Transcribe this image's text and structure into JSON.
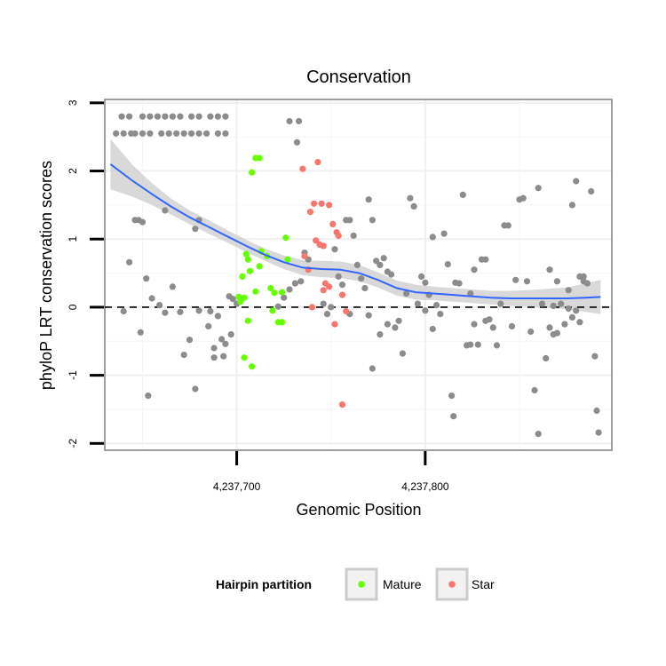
{
  "chart_data": {
    "type": "scatter",
    "title": "Conservation",
    "xlabel": "Genomic Position",
    "ylabel": "phyloP LRT conservation scores",
    "xlim": [
      4237630,
      4237899
    ],
    "ylim": [
      -2.1,
      3.05
    ],
    "x_ticks": [
      4237700,
      4237800
    ],
    "x_tick_labels": [
      "4,237,700",
      "4,237,800"
    ],
    "y_ticks": [
      -2,
      -1,
      0,
      1,
      2,
      3
    ],
    "y_tick_labels": [
      "-2",
      "-1",
      "0",
      "1",
      "2",
      "3"
    ],
    "grid": true,
    "reference_line": {
      "y": 0,
      "style": "dashed"
    },
    "legend": {
      "title": "Hairpin partition",
      "position": "bottom",
      "entries": [
        {
          "label": "Mature",
          "color": "#66ff00"
        },
        {
          "label": "Star",
          "color": "#f8766d"
        }
      ]
    },
    "colors": {
      "other": "#8c8c8c",
      "Mature": "#66ff00",
      "Star": "#f8766d",
      "smooth": "#3366ff",
      "band": "#cccccc"
    },
    "series": [
      {
        "partition": "other",
        "points": [
          [
            4237636,
            2.55
          ],
          [
            4237640,
            2.55
          ],
          [
            4237644,
            2.55
          ],
          [
            4237646,
            2.55
          ],
          [
            4237650,
            2.55
          ],
          [
            4237654,
            2.55
          ],
          [
            4237660,
            2.55
          ],
          [
            4237664,
            2.55
          ],
          [
            4237668,
            2.55
          ],
          [
            4237672,
            2.55
          ],
          [
            4237676,
            2.55
          ],
          [
            4237680,
            2.55
          ],
          [
            4237684,
            2.55
          ],
          [
            4237690,
            2.55
          ],
          [
            4237694,
            2.55
          ],
          [
            4237639,
            2.8
          ],
          [
            4237643,
            2.8
          ],
          [
            4237650,
            2.8
          ],
          [
            4237654,
            2.8
          ],
          [
            4237658,
            2.8
          ],
          [
            4237662,
            2.8
          ],
          [
            4237666,
            2.8
          ],
          [
            4237670,
            2.8
          ],
          [
            4237676,
            2.8
          ],
          [
            4237680,
            2.8
          ],
          [
            4237686,
            2.8
          ],
          [
            4237690,
            2.8
          ],
          [
            4237694,
            2.8
          ],
          [
            4237728,
            2.73
          ],
          [
            4237733,
            2.73
          ],
          [
            4237732,
            2.42
          ],
          [
            4237646,
            1.28
          ],
          [
            4237648,
            1.28
          ],
          [
            4237650,
            1.25
          ],
          [
            4237643,
            0.66
          ],
          [
            4237652,
            0.42
          ],
          [
            4237655,
            0.13
          ],
          [
            4237659,
            0.03
          ],
          [
            4237662,
            1.42
          ],
          [
            4237666,
            0.3
          ],
          [
            4237670,
            -0.07
          ],
          [
            4237672,
            -0.7
          ],
          [
            4237675,
            -0.48
          ],
          [
            4237678,
            1.15
          ],
          [
            4237680,
            1.28
          ],
          [
            4237685,
            -0.28
          ],
          [
            4237686,
            -0.06
          ],
          [
            4237688,
            -0.6
          ],
          [
            4237690,
            -0.13
          ],
          [
            4237692,
            -0.47
          ],
          [
            4237694,
            -0.54
          ],
          [
            4237696,
            0.16
          ],
          [
            4237698,
            0.12
          ],
          [
            4237700,
            0.05
          ],
          [
            4237693,
            -0.72
          ],
          [
            4237649,
            -0.37
          ],
          [
            4237653,
            -1.3
          ],
          [
            4237678,
            -1.2
          ],
          [
            4237662,
            -0.08
          ],
          [
            4237640,
            -0.06
          ],
          [
            4237680,
            -0.05
          ],
          [
            4237688,
            -0.74
          ],
          [
            4237697,
            -0.4
          ],
          [
            4237722,
            0.01
          ],
          [
            4237725,
            0.14
          ],
          [
            4237728,
            0.26
          ],
          [
            4237731,
            0.35
          ],
          [
            4237734,
            0.38
          ],
          [
            4237736,
            0.8
          ],
          [
            4237738,
            0.7
          ],
          [
            4237752,
            0.85
          ],
          [
            4237754,
            0.45
          ],
          [
            4237756,
            0.33
          ],
          [
            4237758,
            1.28
          ],
          [
            4237760,
            1.28
          ],
          [
            4237762,
            1.05
          ],
          [
            4237764,
            0.62
          ],
          [
            4237766,
            0.42
          ],
          [
            4237768,
            0.28
          ],
          [
            4237770,
            1.58
          ],
          [
            4237772,
            1.28
          ],
          [
            4237774,
            0.68
          ],
          [
            4237776,
            0.62
          ],
          [
            4237778,
            0.72
          ],
          [
            4237780,
            0.52
          ],
          [
            4237782,
            0.48
          ],
          [
            4237784,
            -0.3
          ],
          [
            4237786,
            -0.2
          ],
          [
            4237788,
            -0.68
          ],
          [
            4237790,
            0.2
          ],
          [
            4237792,
            1.6
          ],
          [
            4237794,
            1.48
          ],
          [
            4237796,
            0.05
          ],
          [
            4237798,
            0.45
          ],
          [
            4237800,
            0.36
          ],
          [
            4237802,
            0.18
          ],
          [
            4237804,
            1.03
          ],
          [
            4237806,
            0.03
          ],
          [
            4237808,
            -0.1
          ],
          [
            4237810,
            1.08
          ],
          [
            4237812,
            0.63
          ],
          [
            4237814,
            -1.3
          ],
          [
            4237815,
            -1.6
          ],
          [
            4237816,
            0.36
          ],
          [
            4237818,
            0.35
          ],
          [
            4237820,
            1.65
          ],
          [
            4237822,
            -0.56
          ],
          [
            4237824,
            0.2
          ],
          [
            4237826,
            0.55
          ],
          [
            4237828,
            -0.55
          ],
          [
            4237830,
            0.7
          ],
          [
            4237832,
            0.7
          ],
          [
            4237834,
            -0.18
          ],
          [
            4237836,
            -0.3
          ],
          [
            4237838,
            -0.56
          ],
          [
            4237840,
            0.05
          ],
          [
            4237842,
            1.2
          ],
          [
            4237844,
            1.2
          ],
          [
            4237846,
            -0.28
          ],
          [
            4237848,
            0.4
          ],
          [
            4237850,
            1.58
          ],
          [
            4237852,
            1.6
          ],
          [
            4237854,
            0.38
          ],
          [
            4237856,
            -0.36
          ],
          [
            4237858,
            -1.22
          ],
          [
            4237860,
            1.75
          ],
          [
            4237862,
            0.05
          ],
          [
            4237864,
            -0.75
          ],
          [
            4237866,
            0.55
          ],
          [
            4237868,
            0.02
          ],
          [
            4237870,
            0.38
          ],
          [
            4237872,
            0.05
          ],
          [
            4237874,
            -0.25
          ],
          [
            4237876,
            0.25
          ],
          [
            4237878,
            1.5
          ],
          [
            4237880,
            1.85
          ],
          [
            4237882,
            0.45
          ],
          [
            4237884,
            0.45
          ],
          [
            4237886,
            0.35
          ],
          [
            4237888,
            1.7
          ],
          [
            4237890,
            -0.72
          ],
          [
            4237891,
            -1.52
          ],
          [
            4237892,
            -1.84
          ],
          [
            4237860,
            -1.86
          ],
          [
            4237866,
            -0.3
          ],
          [
            4237868,
            -0.4
          ],
          [
            4237746,
            0.05
          ],
          [
            4237748,
            -0.1
          ],
          [
            4237750,
            0.0
          ],
          [
            4237760,
            -0.1
          ],
          [
            4237770,
            -0.12
          ],
          [
            4237776,
            -0.4
          ],
          [
            4237772,
            -0.9
          ],
          [
            4237780,
            -0.25
          ],
          [
            4237800,
            -0.05
          ],
          [
            4237804,
            -0.32
          ],
          [
            4237832,
            -0.2
          ],
          [
            4237826,
            -0.25
          ],
          [
            4237824,
            -0.55
          ],
          [
            4237880,
            -0.05
          ],
          [
            4237882,
            -0.22
          ],
          [
            4237884,
            0.38
          ],
          [
            4237878,
            -0.15
          ],
          [
            4237876,
            -0.02
          ],
          [
            4237870,
            -0.38
          ]
        ]
      },
      {
        "partition": "Mature",
        "points": [
          [
            4237702,
            0.08
          ],
          [
            4237703,
            0.45
          ],
          [
            4237705,
            0.78
          ],
          [
            4237706,
            0.7
          ],
          [
            4237707,
            0.53
          ],
          [
            4237708,
            1.98
          ],
          [
            4237710,
            2.19
          ],
          [
            4237712,
            2.19
          ],
          [
            4237710,
            0.23
          ],
          [
            4237713,
            0.82
          ],
          [
            4237716,
            0.75
          ],
          [
            4237718,
            0.28
          ],
          [
            4237720,
            0.21
          ],
          [
            4237722,
            -0.22
          ],
          [
            4237724,
            0.22
          ],
          [
            4237726,
            1.02
          ],
          [
            4237727,
            0.7
          ],
          [
            4237704,
            -0.74
          ],
          [
            4237708,
            -0.87
          ],
          [
            4237704,
            0.14
          ],
          [
            4237712,
            0.6
          ],
          [
            4237719,
            -0.05
          ],
          [
            4237724,
            -0.22
          ],
          [
            4237706,
            -0.2
          ],
          [
            4237701,
            0.15
          ]
        ]
      },
      {
        "partition": "Star",
        "points": [
          [
            4237735,
            2.03
          ],
          [
            4237743,
            2.13
          ],
          [
            4237739,
            1.4
          ],
          [
            4237741,
            1.52
          ],
          [
            4237745,
            1.52
          ],
          [
            4237749,
            1.5
          ],
          [
            4237751,
            1.22
          ],
          [
            4237753,
            1.1
          ],
          [
            4237754,
            1.05
          ],
          [
            4237744,
            0.92
          ],
          [
            4237742,
            0.98
          ],
          [
            4237746,
            0.9
          ],
          [
            4237736,
            0.75
          ],
          [
            4237738,
            0.55
          ],
          [
            4237747,
            0.35
          ],
          [
            4237749,
            0.3
          ],
          [
            4237746,
            0.25
          ],
          [
            4237756,
            0.18
          ],
          [
            4237758,
            -0.06
          ],
          [
            4237740,
            0.0
          ],
          [
            4237752,
            -0.25
          ],
          [
            4237756,
            -1.43
          ]
        ]
      }
    ],
    "smooth": {
      "x": [
        4237633,
        4237645,
        4237655,
        4237665,
        4237675,
        4237685,
        4237695,
        4237705,
        4237715,
        4237725,
        4237735,
        4237745,
        4237755,
        4237765,
        4237775,
        4237785,
        4237795,
        4237805,
        4237815,
        4237825,
        4237835,
        4237845,
        4237855,
        4237865,
        4237875,
        4237885,
        4237893
      ],
      "y": [
        2.1,
        1.85,
        1.66,
        1.48,
        1.32,
        1.18,
        1.04,
        0.9,
        0.77,
        0.66,
        0.58,
        0.56,
        0.55,
        0.5,
        0.4,
        0.28,
        0.22,
        0.2,
        0.18,
        0.16,
        0.14,
        0.13,
        0.13,
        0.13,
        0.13,
        0.14,
        0.15
      ],
      "ymin": [
        1.73,
        1.62,
        1.5,
        1.36,
        1.22,
        1.08,
        0.95,
        0.81,
        0.68,
        0.56,
        0.47,
        0.44,
        0.43,
        0.38,
        0.29,
        0.17,
        0.11,
        0.1,
        0.08,
        0.06,
        0.04,
        0.02,
        0.01,
        -0.01,
        -0.03,
        -0.07,
        -0.1
      ],
      "ymax": [
        2.47,
        2.08,
        1.82,
        1.6,
        1.42,
        1.28,
        1.13,
        0.99,
        0.86,
        0.76,
        0.69,
        0.68,
        0.67,
        0.62,
        0.51,
        0.39,
        0.33,
        0.3,
        0.28,
        0.26,
        0.24,
        0.24,
        0.25,
        0.27,
        0.29,
        0.35,
        0.4
      ]
    }
  }
}
